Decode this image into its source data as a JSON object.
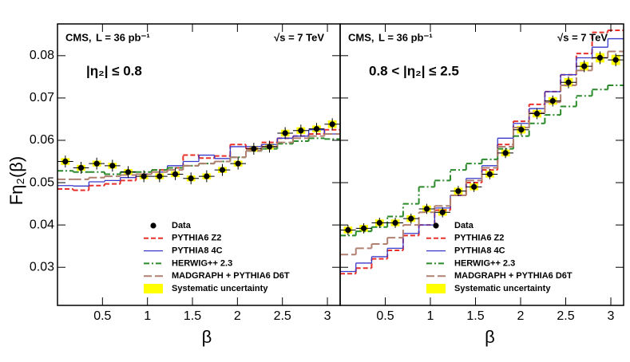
{
  "chart_data": [
    {
      "type": "step_histogram",
      "xlabel": "β",
      "ylabel": "Fη₂(β)",
      "annotations": [
        "CMS,",
        "L = 36 pb⁻¹",
        "√s = 7 TeV",
        "|η₂| ≤ 0.8"
      ],
      "xlim": [
        0,
        3.1416
      ],
      "ylim": [
        0.021,
        0.0875
      ],
      "xticks": [
        0.5,
        1,
        1.5,
        2,
        2.5,
        3
      ],
      "yticks": [
        0.03,
        0.04,
        0.05,
        0.06,
        0.07,
        0.08
      ],
      "bins": [
        0,
        0.1745,
        0.3491,
        0.5236,
        0.6981,
        0.8727,
        1.0472,
        1.2217,
        1.3963,
        1.5708,
        1.7453,
        1.9199,
        2.0944,
        2.2689,
        2.4435,
        2.618,
        2.7925,
        2.9671,
        3.1416
      ],
      "syst_label": "Systematic uncertainty",
      "syst_color": "#ffff00",
      "series": [
        {
          "name": "Data",
          "color": "#000000",
          "style": "points",
          "values": [
            0.055,
            0.0535,
            0.0545,
            0.054,
            0.0525,
            0.0515,
            0.0515,
            0.052,
            0.051,
            0.0515,
            0.053,
            0.0545,
            0.058,
            0.0585,
            0.0617,
            0.0623,
            0.0627,
            0.0638
          ],
          "errors": [
            0.0014,
            0.0014,
            0.0014,
            0.0014,
            0.0014,
            0.0014,
            0.0014,
            0.0014,
            0.0014,
            0.0014,
            0.0014,
            0.0014,
            0.0014,
            0.0014,
            0.0014,
            0.0014,
            0.0014,
            0.0014
          ],
          "syst": [
            0.0008,
            0.0007,
            0.0007,
            0.0007,
            0.0007,
            0.0007,
            0.0007,
            0.0007,
            0.0007,
            0.0007,
            0.0007,
            0.0007,
            0.0007,
            0.0007,
            0.0008,
            0.0008,
            0.0008,
            0.0009
          ]
        },
        {
          "name": "PYTHIA6 Z2",
          "color": "#e8312a",
          "style": "dashed",
          "values": [
            0.0485,
            0.0482,
            0.0493,
            0.0497,
            0.0505,
            0.052,
            0.053,
            0.0535,
            0.0565,
            0.0558,
            0.0563,
            0.059,
            0.058,
            0.0595,
            0.0605,
            0.061,
            0.0615,
            0.0625
          ]
        },
        {
          "name": "PYTHIA8 4C",
          "color": "#3a3ac8",
          "style": "solid",
          "values": [
            0.0493,
            0.0492,
            0.0502,
            0.0505,
            0.0512,
            0.052,
            0.0525,
            0.054,
            0.055,
            0.0565,
            0.0557,
            0.0585,
            0.0585,
            0.059,
            0.0605,
            0.061,
            0.0625,
            0.0615
          ]
        },
        {
          "name": "HERWIG++ 2.3",
          "color": "#2b8a2b",
          "style": "dashdot",
          "values": [
            0.0528,
            0.0525,
            0.0525,
            0.052,
            0.0525,
            0.0525,
            0.053,
            0.0535,
            0.054,
            0.0545,
            0.055,
            0.056,
            0.0575,
            0.058,
            0.0592,
            0.0598,
            0.0605,
            0.0603
          ]
        },
        {
          "name": "MADGRAPH + PYTHIA6 D6T",
          "color": "#b08070",
          "style": "longdash",
          "values": [
            0.0508,
            0.0508,
            0.0512,
            0.0515,
            0.0518,
            0.052,
            0.0525,
            0.053,
            0.054,
            0.0545,
            0.055,
            0.056,
            0.0575,
            0.0585,
            0.0595,
            0.0605,
            0.061,
            0.0615
          ]
        }
      ]
    },
    {
      "type": "step_histogram",
      "xlabel": "β",
      "annotations": [
        "CMS,",
        "L = 36 pb⁻¹",
        "√s = 7 TeV",
        "0.8 < |η₂| ≤ 2.5"
      ],
      "xlim": [
        0,
        3.1416
      ],
      "ylim": [
        0.021,
        0.0875
      ],
      "xticks": [
        0.5,
        1,
        1.5,
        2,
        2.5,
        3
      ],
      "yticks": [
        0.03,
        0.04,
        0.05,
        0.06,
        0.07,
        0.08
      ],
      "bins": [
        0,
        0.1745,
        0.3491,
        0.5236,
        0.6981,
        0.8727,
        1.0472,
        1.2217,
        1.3963,
        1.5708,
        1.7453,
        1.9199,
        2.0944,
        2.2689,
        2.4435,
        2.618,
        2.7925,
        2.9671,
        3.1416
      ],
      "syst_label": "Systematic uncertainty",
      "syst_color": "#ffff00",
      "series": [
        {
          "name": "Data",
          "color": "#000000",
          "style": "points",
          "values": [
            0.0388,
            0.0392,
            0.0405,
            0.0405,
            0.0415,
            0.0438,
            0.043,
            0.048,
            0.049,
            0.052,
            0.057,
            0.0625,
            0.0663,
            0.0693,
            0.0737,
            0.0775,
            0.0795,
            0.079
          ],
          "errors": [
            0.0012,
            0.0012,
            0.0012,
            0.0012,
            0.0012,
            0.0012,
            0.0012,
            0.0012,
            0.0012,
            0.0012,
            0.0012,
            0.0013,
            0.0013,
            0.0013,
            0.0014,
            0.0014,
            0.0015,
            0.0015
          ],
          "syst": [
            0.0008,
            0.0008,
            0.0008,
            0.0008,
            0.0008,
            0.0008,
            0.0008,
            0.0008,
            0.0008,
            0.0008,
            0.0008,
            0.0009,
            0.0009,
            0.0009,
            0.001,
            0.001,
            0.0011,
            0.0012
          ]
        },
        {
          "name": "PYTHIA6 Z2",
          "color": "#e8312a",
          "style": "dashed",
          "values": [
            0.0285,
            0.0298,
            0.032,
            0.034,
            0.0375,
            0.04,
            0.0435,
            0.047,
            0.05,
            0.053,
            0.059,
            0.0645,
            0.0685,
            0.0715,
            0.0755,
            0.0805,
            0.0855,
            0.086
          ]
        },
        {
          "name": "PYTHIA8 4C",
          "color": "#3a3ac8",
          "style": "solid",
          "values": [
            0.029,
            0.031,
            0.0325,
            0.0345,
            0.038,
            0.04,
            0.044,
            0.047,
            0.051,
            0.054,
            0.0605,
            0.064,
            0.0675,
            0.0715,
            0.0755,
            0.0795,
            0.082,
            0.084
          ]
        },
        {
          "name": "HERWIG++ 2.3",
          "color": "#2b8a2b",
          "style": "dashdot",
          "values": [
            0.0375,
            0.0385,
            0.0395,
            0.042,
            0.045,
            0.049,
            0.0505,
            0.053,
            0.0545,
            0.0555,
            0.058,
            0.061,
            0.064,
            0.066,
            0.068,
            0.0705,
            0.072,
            0.073
          ]
        },
        {
          "name": "MADGRAPH + PYTHIA6 D6T",
          "color": "#b08070",
          "style": "longdash",
          "values": [
            0.033,
            0.0345,
            0.0355,
            0.037,
            0.04,
            0.043,
            0.0445,
            0.047,
            0.0505,
            0.0535,
            0.0585,
            0.063,
            0.0665,
            0.069,
            0.073,
            0.0765,
            0.0795,
            0.081
          ]
        }
      ]
    }
  ]
}
